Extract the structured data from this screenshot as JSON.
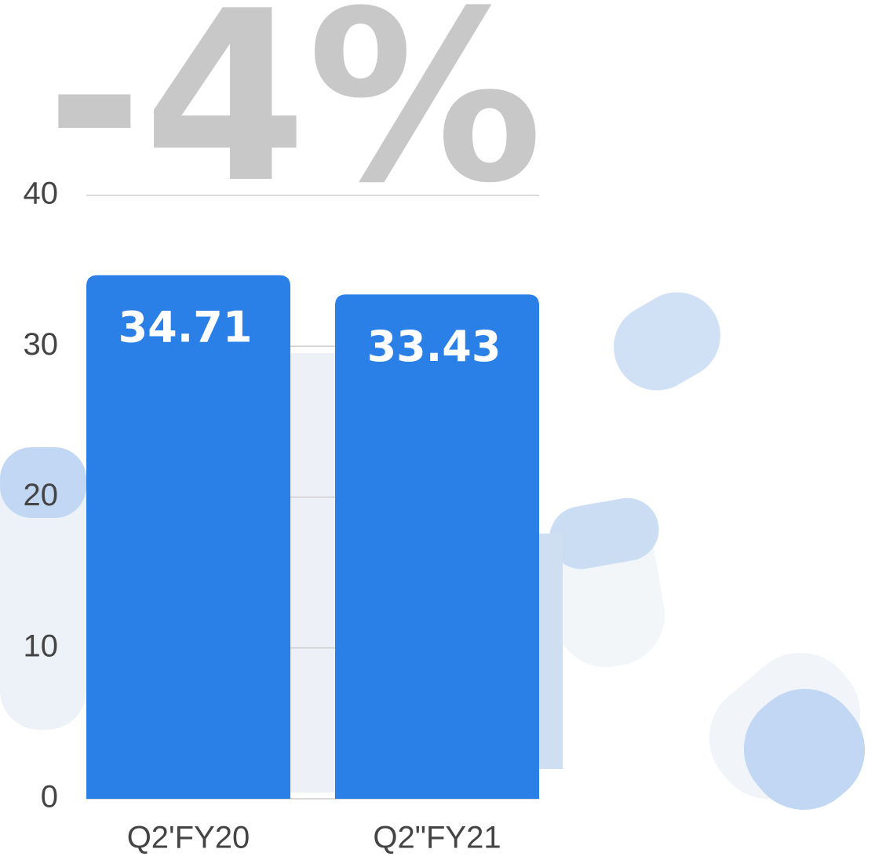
{
  "chart_data": {
    "type": "bar",
    "annotation": "-4%",
    "categories": [
      "Q2'FY20",
      "Q2\"FY21"
    ],
    "values": [
      34.71,
      33.43
    ],
    "color": "#2b80e8",
    "ylim": [
      0,
      40
    ],
    "yticks": [
      0,
      10,
      20,
      30,
      40
    ],
    "grid": true
  }
}
